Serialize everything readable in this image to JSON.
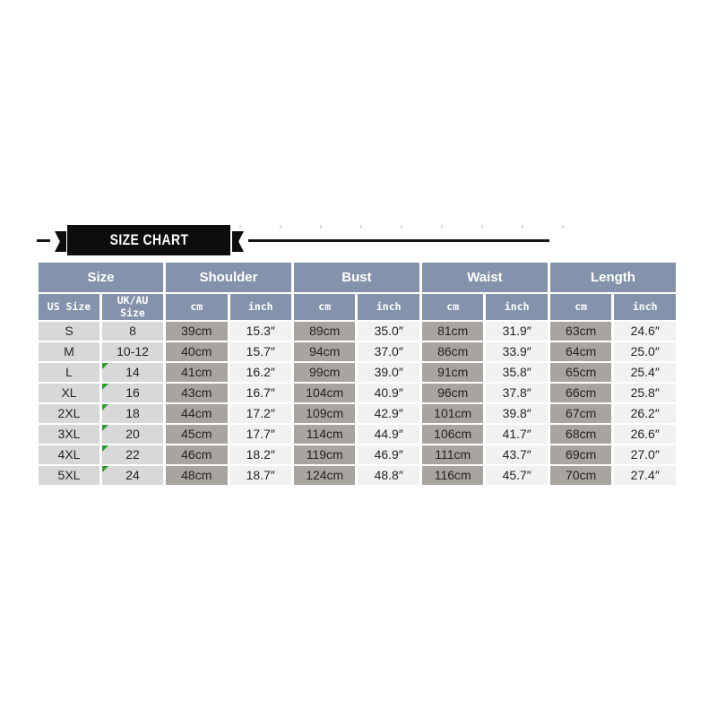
{
  "banner": {
    "title": "SIZE CHART"
  },
  "table": {
    "column_groups": [
      {
        "label": "Size",
        "subcolumns": [
          "US Size",
          "UK/AU Size"
        ]
      },
      {
        "label": "Shoulder",
        "subcolumns": [
          "cm",
          "inch"
        ]
      },
      {
        "label": "Bust",
        "subcolumns": [
          "cm",
          "inch"
        ]
      },
      {
        "label": "Waist",
        "subcolumns": [
          "cm",
          "inch"
        ]
      },
      {
        "label": "Length",
        "subcolumns": [
          "cm",
          "inch"
        ]
      }
    ],
    "rows": [
      {
        "us_size": "S",
        "ukau_size": "8",
        "ukau_flag": false,
        "values": [
          "39cm",
          "15.3″",
          "89cm",
          "35.0″",
          "81cm",
          "31.9″",
          "63cm",
          "24.6″"
        ]
      },
      {
        "us_size": "M",
        "ukau_size": "10-12",
        "ukau_flag": false,
        "values": [
          "40cm",
          "15.7″",
          "94cm",
          "37.0″",
          "86cm",
          "33.9″",
          "64cm",
          "25.0″"
        ]
      },
      {
        "us_size": "L",
        "ukau_size": "14",
        "ukau_flag": true,
        "values": [
          "41cm",
          "16.2″",
          "99cm",
          "39.0″",
          "91cm",
          "35.8″",
          "65cm",
          "25.4″"
        ]
      },
      {
        "us_size": "XL",
        "ukau_size": "16",
        "ukau_flag": true,
        "values": [
          "43cm",
          "16.7″",
          "104cm",
          "40.9″",
          "96cm",
          "37.8″",
          "66cm",
          "25.8″"
        ]
      },
      {
        "us_size": "2XL",
        "ukau_size": "18",
        "ukau_flag": true,
        "values": [
          "44cm",
          "17.2″",
          "109cm",
          "42.9″",
          "101cm",
          "39.8″",
          "67cm",
          "26.2″"
        ]
      },
      {
        "us_size": "3XL",
        "ukau_size": "20",
        "ukau_flag": true,
        "values": [
          "45cm",
          "17.7″",
          "114cm",
          "44.9″",
          "106cm",
          "41.7″",
          "68cm",
          "26.6″"
        ]
      },
      {
        "us_size": "4XL",
        "ukau_size": "22",
        "ukau_flag": true,
        "values": [
          "46cm",
          "18.2″",
          "119cm",
          "46.9″",
          "111cm",
          "43.7″",
          "69cm",
          "27.0″"
        ]
      },
      {
        "us_size": "5XL",
        "ukau_size": "24",
        "ukau_flag": true,
        "values": [
          "48cm",
          "18.7″",
          "124cm",
          "48.8″",
          "116cm",
          "45.7″",
          "70cm",
          "27.4″"
        ]
      }
    ]
  },
  "colors": {
    "banner_bg": "#0d0d0d",
    "header_bg": "#8493ab",
    "size_cell_bg": "#d8d8d8",
    "cm_cell_bg": "#a8a49f",
    "inch_cell_bg": "#f2f1ef",
    "flag_green": "#2e9b2e"
  }
}
